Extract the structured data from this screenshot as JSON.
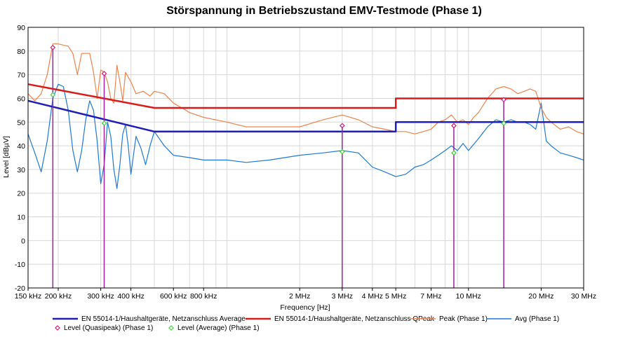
{
  "chart_data": {
    "type": "line",
    "title": "Störspannung in Betriebszustand EMV-Testmode (Phase 1)",
    "xlabel": "Frequency [Hz]",
    "ylabel": "Level [dBµV]",
    "xscale": "log",
    "xlim_hz": [
      150000,
      30000000
    ],
    "ylim": [
      -20,
      90
    ],
    "grid": true,
    "legend_position": "bottom",
    "x_ticks": [
      {
        "hz": 150000,
        "label": "150 kHz"
      },
      {
        "hz": 200000,
        "label": "200 kHz"
      },
      {
        "hz": 300000,
        "label": "300 kHz"
      },
      {
        "hz": 400000,
        "label": "400 kHz"
      },
      {
        "hz": 600000,
        "label": "600 kHz"
      },
      {
        "hz": 800000,
        "label": "800 kHz"
      },
      {
        "hz": 2000000,
        "label": "2 MHz"
      },
      {
        "hz": 3000000,
        "label": "3 MHz"
      },
      {
        "hz": 4000000,
        "label": "4 MHz"
      },
      {
        "hz": 5000000,
        "label": "5 MHz"
      },
      {
        "hz": 7000000,
        "label": "7 MHz"
      },
      {
        "hz": 10000000,
        "label": "10 MHz"
      },
      {
        "hz": 20000000,
        "label": "20 MHz"
      },
      {
        "hz": 30000000,
        "label": "30 MHz"
      }
    ],
    "y_ticks": [
      90,
      80,
      70,
      60,
      50,
      40,
      30,
      20,
      10,
      0,
      -10,
      -20
    ],
    "series": [
      {
        "name": "EN 55014-1/Haushaltgeräte, Netzanschluss Average",
        "color": "#1f1fb4",
        "points": [
          [
            150000,
            59
          ],
          [
            500000,
            46
          ],
          [
            5000000,
            46
          ],
          [
            5000000,
            50
          ],
          [
            30000000,
            50
          ]
        ]
      },
      {
        "name": "EN 55014-1/Haushaltgeräte, Netzanschluss QPeak",
        "color": "#d91b1b",
        "points": [
          [
            150000,
            66
          ],
          [
            500000,
            56
          ],
          [
            5000000,
            56
          ],
          [
            5000000,
            60
          ],
          [
            30000000,
            60
          ]
        ]
      },
      {
        "name": "Peak (Phase 1)",
        "color": "#f0834a",
        "points": [
          [
            150000,
            62
          ],
          [
            160000,
            59
          ],
          [
            170000,
            62
          ],
          [
            180000,
            70
          ],
          [
            190000,
            83
          ],
          [
            200000,
            83
          ],
          [
            220000,
            82
          ],
          [
            230000,
            79
          ],
          [
            240000,
            70
          ],
          [
            250000,
            79
          ],
          [
            270000,
            79
          ],
          [
            280000,
            71
          ],
          [
            290000,
            60
          ],
          [
            300000,
            72
          ],
          [
            310000,
            71
          ],
          [
            320000,
            67
          ],
          [
            330000,
            60
          ],
          [
            340000,
            58
          ],
          [
            350000,
            74
          ],
          [
            360000,
            67
          ],
          [
            370000,
            59
          ],
          [
            380000,
            71
          ],
          [
            400000,
            67
          ],
          [
            420000,
            62
          ],
          [
            450000,
            63
          ],
          [
            480000,
            61
          ],
          [
            500000,
            63
          ],
          [
            550000,
            62
          ],
          [
            600000,
            58
          ],
          [
            650000,
            56
          ],
          [
            700000,
            54
          ],
          [
            800000,
            52
          ],
          [
            1000000,
            50
          ],
          [
            1200000,
            48
          ],
          [
            1500000,
            48
          ],
          [
            2000000,
            48
          ],
          [
            2500000,
            51
          ],
          [
            3000000,
            53
          ],
          [
            3500000,
            51
          ],
          [
            4000000,
            48
          ],
          [
            4500000,
            47
          ],
          [
            5000000,
            46
          ],
          [
            5500000,
            46
          ],
          [
            6000000,
            45
          ],
          [
            6500000,
            46
          ],
          [
            7000000,
            47
          ],
          [
            7500000,
            50
          ],
          [
            8000000,
            51
          ],
          [
            8500000,
            53
          ],
          [
            9000000,
            50
          ],
          [
            9500000,
            51
          ],
          [
            10000000,
            49
          ],
          [
            10500000,
            52
          ],
          [
            11000000,
            54
          ],
          [
            12000000,
            60
          ],
          [
            13000000,
            64
          ],
          [
            14000000,
            65
          ],
          [
            15000000,
            64
          ],
          [
            16000000,
            62
          ],
          [
            17000000,
            63
          ],
          [
            18000000,
            64
          ],
          [
            19000000,
            63
          ],
          [
            20000000,
            56
          ],
          [
            21000000,
            52
          ],
          [
            22000000,
            50
          ],
          [
            24000000,
            47
          ],
          [
            26000000,
            48
          ],
          [
            28000000,
            46
          ],
          [
            30000000,
            45
          ]
        ]
      },
      {
        "name": "Avg (Phase 1)",
        "color": "#1e7ad6",
        "points": [
          [
            150000,
            45
          ],
          [
            160000,
            37
          ],
          [
            170000,
            29
          ],
          [
            180000,
            42
          ],
          [
            190000,
            60
          ],
          [
            200000,
            66
          ],
          [
            210000,
            65
          ],
          [
            220000,
            55
          ],
          [
            230000,
            38
          ],
          [
            240000,
            29
          ],
          [
            250000,
            38
          ],
          [
            260000,
            51
          ],
          [
            270000,
            59
          ],
          [
            280000,
            55
          ],
          [
            290000,
            42
          ],
          [
            300000,
            24
          ],
          [
            310000,
            32
          ],
          [
            320000,
            50
          ],
          [
            330000,
            44
          ],
          [
            340000,
            30
          ],
          [
            350000,
            22
          ],
          [
            360000,
            32
          ],
          [
            370000,
            45
          ],
          [
            380000,
            49
          ],
          [
            390000,
            40
          ],
          [
            400000,
            28
          ],
          [
            420000,
            44
          ],
          [
            440000,
            39
          ],
          [
            460000,
            32
          ],
          [
            480000,
            40
          ],
          [
            500000,
            46
          ],
          [
            550000,
            40
          ],
          [
            600000,
            36
          ],
          [
            700000,
            35
          ],
          [
            800000,
            34
          ],
          [
            1000000,
            34
          ],
          [
            1200000,
            33
          ],
          [
            1500000,
            34
          ],
          [
            2000000,
            36
          ],
          [
            2500000,
            37
          ],
          [
            3000000,
            38
          ],
          [
            3500000,
            37
          ],
          [
            4000000,
            31
          ],
          [
            4500000,
            29
          ],
          [
            5000000,
            27
          ],
          [
            5500000,
            28
          ],
          [
            6000000,
            31
          ],
          [
            6500000,
            32
          ],
          [
            7000000,
            34
          ],
          [
            7500000,
            36
          ],
          [
            8000000,
            38
          ],
          [
            8500000,
            40
          ],
          [
            9000000,
            38
          ],
          [
            9500000,
            41
          ],
          [
            10000000,
            38
          ],
          [
            11000000,
            43
          ],
          [
            12000000,
            48
          ],
          [
            13000000,
            51
          ],
          [
            14000000,
            50
          ],
          [
            15000000,
            51
          ],
          [
            16000000,
            50
          ],
          [
            17000000,
            50
          ],
          [
            18000000,
            49
          ],
          [
            19000000,
            47
          ],
          [
            20000000,
            58
          ],
          [
            21000000,
            42
          ],
          [
            22000000,
            40
          ],
          [
            24000000,
            37
          ],
          [
            26000000,
            36
          ],
          [
            28000000,
            35
          ],
          [
            30000000,
            34
          ]
        ]
      }
    ],
    "markers": [
      {
        "name": "Level (Quasipeak) (Phase 1)",
        "color": "#e0157a",
        "stem_color": "#a020a0",
        "points": [
          [
            190000,
            81.5
          ],
          [
            310000,
            70.5
          ],
          [
            3000000,
            48.5
          ],
          [
            8700000,
            48.5
          ],
          [
            14000000,
            59.5
          ]
        ]
      },
      {
        "name": "Level (Average) (Phase 1)",
        "color": "#38d838",
        "points": [
          [
            190000,
            61.5
          ],
          [
            310000,
            49.5
          ],
          [
            3000000,
            37.5
          ],
          [
            8700000,
            37
          ],
          [
            14000000,
            49.5
          ]
        ]
      }
    ]
  }
}
